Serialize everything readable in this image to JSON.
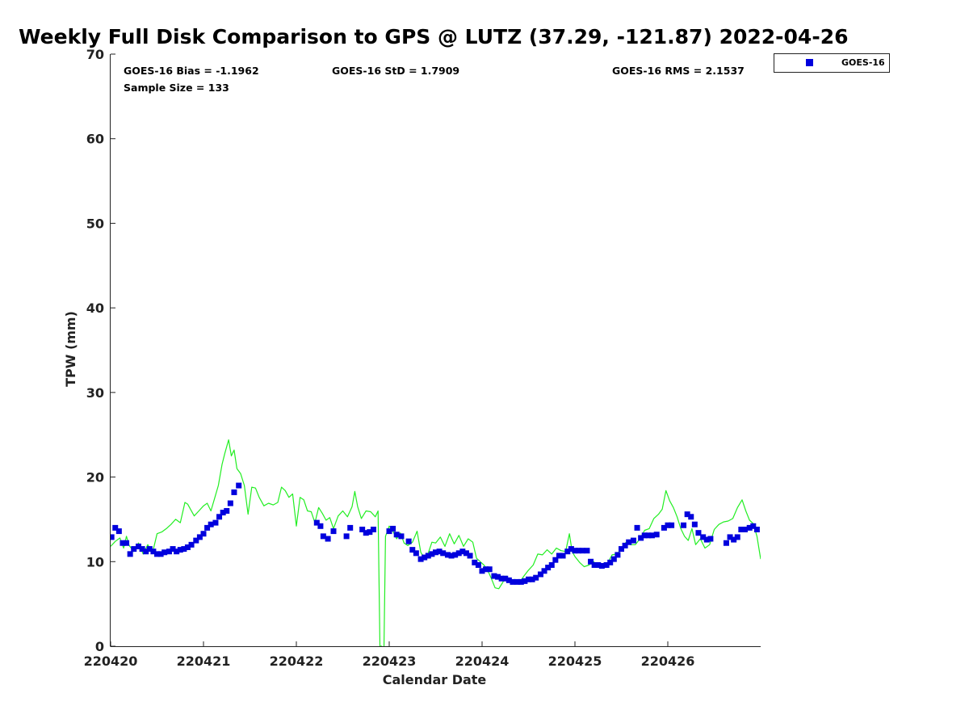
{
  "chart_data": {
    "type": "scatter",
    "title": "Weekly Full Disk Comparison to GPS @ LUTZ (37.29, -121.87) 2022-04-26",
    "xlabel": "Calendar Date",
    "ylabel": "TPW (mm)",
    "xlim": [
      0,
      7
    ],
    "ylim": [
      0,
      70
    ],
    "x_ticks": [
      0,
      1,
      2,
      3,
      4,
      5,
      6
    ],
    "x_tick_labels": [
      "220420",
      "220421",
      "220422",
      "220423",
      "220424",
      "220425",
      "220426"
    ],
    "y_ticks": [
      0,
      10,
      20,
      30,
      40,
      50,
      60,
      70
    ],
    "y_tick_labels": [
      "0",
      "10",
      "20",
      "30",
      "40",
      "50",
      "60",
      "70"
    ],
    "grid": false,
    "legend": {
      "placement": "outside-top-right",
      "entries": [
        "GOES-16"
      ]
    },
    "stats": {
      "bias": "GOES-16 Bias = -1.1962",
      "std": "GOES-16 StD = 1.7909",
      "rms": "GOES-16 RMS = 2.1537",
      "sample": "Sample Size = 133"
    },
    "series": [
      {
        "name": "GOES-16",
        "kind": "scatter",
        "marker": "square",
        "color": "#0000dd",
        "points": [
          [
            0.01,
            12.9
          ],
          [
            0.05,
            14.0
          ],
          [
            0.09,
            13.6
          ],
          [
            0.13,
            12.2
          ],
          [
            0.17,
            12.2
          ],
          [
            0.21,
            10.9
          ],
          [
            0.25,
            11.5
          ],
          [
            0.3,
            11.8
          ],
          [
            0.34,
            11.5
          ],
          [
            0.38,
            11.2
          ],
          [
            0.42,
            11.5
          ],
          [
            0.46,
            11.2
          ],
          [
            0.5,
            10.9
          ],
          [
            0.54,
            10.9
          ],
          [
            0.58,
            11.1
          ],
          [
            0.63,
            11.2
          ],
          [
            0.67,
            11.5
          ],
          [
            0.71,
            11.2
          ],
          [
            0.75,
            11.4
          ],
          [
            0.79,
            11.5
          ],
          [
            0.83,
            11.7
          ],
          [
            0.87,
            12.0
          ],
          [
            0.92,
            12.5
          ],
          [
            0.96,
            12.9
          ],
          [
            1.0,
            13.3
          ],
          [
            1.04,
            14.0
          ],
          [
            1.08,
            14.4
          ],
          [
            1.13,
            14.6
          ],
          [
            1.17,
            15.3
          ],
          [
            1.21,
            15.8
          ],
          [
            1.25,
            16.0
          ],
          [
            1.29,
            16.9
          ],
          [
            1.33,
            18.2
          ],
          [
            1.38,
            19.0
          ],
          [
            2.22,
            14.6
          ],
          [
            2.26,
            14.2
          ],
          [
            2.29,
            13.0
          ],
          [
            2.34,
            12.7
          ],
          [
            2.4,
            13.6
          ],
          [
            2.54,
            13.0
          ],
          [
            2.58,
            14.0
          ],
          [
            2.71,
            13.8
          ],
          [
            2.75,
            13.4
          ],
          [
            2.79,
            13.5
          ],
          [
            2.83,
            13.8
          ],
          [
            3.0,
            13.6
          ],
          [
            3.04,
            13.9
          ],
          [
            3.08,
            13.2
          ],
          [
            3.13,
            13.0
          ],
          [
            3.21,
            12.4
          ],
          [
            3.25,
            11.4
          ],
          [
            3.29,
            11.0
          ],
          [
            3.34,
            10.3
          ],
          [
            3.38,
            10.5
          ],
          [
            3.42,
            10.7
          ],
          [
            3.46,
            10.9
          ],
          [
            3.5,
            11.1
          ],
          [
            3.54,
            11.2
          ],
          [
            3.58,
            11.0
          ],
          [
            3.63,
            10.8
          ],
          [
            3.67,
            10.7
          ],
          [
            3.71,
            10.8
          ],
          [
            3.75,
            11.0
          ],
          [
            3.79,
            11.2
          ],
          [
            3.83,
            11.0
          ],
          [
            3.87,
            10.7
          ],
          [
            3.92,
            9.9
          ],
          [
            3.96,
            9.6
          ],
          [
            4.0,
            8.9
          ],
          [
            4.04,
            9.1
          ],
          [
            4.08,
            9.1
          ],
          [
            4.13,
            8.3
          ],
          [
            4.17,
            8.2
          ],
          [
            4.21,
            8.0
          ],
          [
            4.25,
            8.0
          ],
          [
            4.29,
            7.8
          ],
          [
            4.33,
            7.6
          ],
          [
            4.38,
            7.6
          ],
          [
            4.42,
            7.6
          ],
          [
            4.46,
            7.7
          ],
          [
            4.5,
            7.9
          ],
          [
            4.54,
            7.9
          ],
          [
            4.58,
            8.1
          ],
          [
            4.63,
            8.5
          ],
          [
            4.67,
            8.9
          ],
          [
            4.71,
            9.3
          ],
          [
            4.75,
            9.6
          ],
          [
            4.79,
            10.2
          ],
          [
            4.83,
            10.7
          ],
          [
            4.87,
            10.7
          ],
          [
            4.92,
            11.2
          ],
          [
            4.96,
            11.5
          ],
          [
            5.0,
            11.3
          ],
          [
            5.04,
            11.3
          ],
          [
            5.08,
            11.3
          ],
          [
            5.13,
            11.3
          ],
          [
            5.17,
            10.0
          ],
          [
            5.21,
            9.6
          ],
          [
            5.25,
            9.6
          ],
          [
            5.29,
            9.5
          ],
          [
            5.34,
            9.6
          ],
          [
            5.38,
            9.9
          ],
          [
            5.42,
            10.3
          ],
          [
            5.46,
            10.8
          ],
          [
            5.5,
            11.5
          ],
          [
            5.54,
            11.9
          ],
          [
            5.58,
            12.3
          ],
          [
            5.63,
            12.5
          ],
          [
            5.67,
            14.0
          ],
          [
            5.71,
            12.8
          ],
          [
            5.75,
            13.1
          ],
          [
            5.79,
            13.1
          ],
          [
            5.83,
            13.1
          ],
          [
            5.88,
            13.2
          ],
          [
            5.96,
            14.0
          ],
          [
            6.0,
            14.3
          ],
          [
            6.04,
            14.3
          ],
          [
            6.17,
            14.3
          ],
          [
            6.21,
            15.6
          ],
          [
            6.25,
            15.3
          ],
          [
            6.29,
            14.4
          ],
          [
            6.33,
            13.4
          ],
          [
            6.38,
            12.9
          ],
          [
            6.42,
            12.6
          ],
          [
            6.46,
            12.7
          ],
          [
            6.63,
            12.2
          ],
          [
            6.67,
            12.9
          ],
          [
            6.71,
            12.6
          ],
          [
            6.75,
            12.9
          ],
          [
            6.79,
            13.8
          ],
          [
            6.83,
            13.8
          ],
          [
            6.88,
            14.0
          ],
          [
            6.92,
            14.2
          ],
          [
            6.96,
            13.8
          ]
        ]
      },
      {
        "name": "GPS",
        "kind": "line",
        "color": "#22ee22",
        "points": [
          [
            0.0,
            11.8
          ],
          [
            0.05,
            12.4
          ],
          [
            0.1,
            12.8
          ],
          [
            0.14,
            11.6
          ],
          [
            0.17,
            13.0
          ],
          [
            0.2,
            11.9
          ],
          [
            0.25,
            11.2
          ],
          [
            0.3,
            12.2
          ],
          [
            0.35,
            10.9
          ],
          [
            0.4,
            12.0
          ],
          [
            0.45,
            11.0
          ],
          [
            0.5,
            13.3
          ],
          [
            0.55,
            13.5
          ],
          [
            0.6,
            13.9
          ],
          [
            0.65,
            14.4
          ],
          [
            0.7,
            15.0
          ],
          [
            0.75,
            14.6
          ],
          [
            0.8,
            17.0
          ],
          [
            0.83,
            16.8
          ],
          [
            0.86,
            16.2
          ],
          [
            0.9,
            15.4
          ],
          [
            0.95,
            16.0
          ],
          [
            1.0,
            16.6
          ],
          [
            1.04,
            16.9
          ],
          [
            1.08,
            16.0
          ],
          [
            1.12,
            17.5
          ],
          [
            1.16,
            19.0
          ],
          [
            1.2,
            21.5
          ],
          [
            1.23,
            22.8
          ],
          [
            1.27,
            24.4
          ],
          [
            1.3,
            22.5
          ],
          [
            1.33,
            23.2
          ],
          [
            1.36,
            21.0
          ],
          [
            1.4,
            20.4
          ],
          [
            1.44,
            19.0
          ],
          [
            1.48,
            15.6
          ],
          [
            1.52,
            18.8
          ],
          [
            1.56,
            18.7
          ],
          [
            1.6,
            17.6
          ],
          [
            1.65,
            16.6
          ],
          [
            1.7,
            16.9
          ],
          [
            1.75,
            16.7
          ],
          [
            1.8,
            17.0
          ],
          [
            1.84,
            18.8
          ],
          [
            1.88,
            18.4
          ],
          [
            1.92,
            17.6
          ],
          [
            1.96,
            18.0
          ],
          [
            2.0,
            14.2
          ],
          [
            2.04,
            17.6
          ],
          [
            2.08,
            17.3
          ],
          [
            2.12,
            16.0
          ],
          [
            2.16,
            15.9
          ],
          [
            2.2,
            14.6
          ],
          [
            2.24,
            16.4
          ],
          [
            2.28,
            15.7
          ],
          [
            2.32,
            14.9
          ],
          [
            2.36,
            15.2
          ],
          [
            2.4,
            13.9
          ],
          [
            2.45,
            15.4
          ],
          [
            2.5,
            16.0
          ],
          [
            2.55,
            15.3
          ],
          [
            2.6,
            16.5
          ],
          [
            2.63,
            18.3
          ],
          [
            2.66,
            16.5
          ],
          [
            2.7,
            15.1
          ],
          [
            2.75,
            16.0
          ],
          [
            2.8,
            15.9
          ],
          [
            2.85,
            15.3
          ],
          [
            2.88,
            16.0
          ],
          [
            2.9,
            0.0
          ],
          [
            2.92,
            0.0
          ],
          [
            2.94,
            -3.0
          ],
          [
            2.96,
            13.0
          ],
          [
            3.0,
            14.2
          ],
          [
            3.04,
            13.6
          ],
          [
            3.08,
            12.7
          ],
          [
            3.12,
            13.4
          ],
          [
            3.16,
            12.2
          ],
          [
            3.2,
            11.9
          ],
          [
            3.25,
            12.3
          ],
          [
            3.3,
            13.6
          ],
          [
            3.34,
            11.1
          ],
          [
            3.38,
            10.4
          ],
          [
            3.42,
            11.0
          ],
          [
            3.46,
            12.3
          ],
          [
            3.5,
            12.2
          ],
          [
            3.55,
            12.9
          ],
          [
            3.6,
            11.8
          ],
          [
            3.65,
            13.3
          ],
          [
            3.7,
            12.1
          ],
          [
            3.75,
            13.1
          ],
          [
            3.8,
            11.8
          ],
          [
            3.85,
            12.7
          ],
          [
            3.9,
            12.3
          ],
          [
            3.94,
            10.4
          ],
          [
            3.98,
            10.0
          ],
          [
            4.02,
            9.6
          ],
          [
            4.06,
            9.0
          ],
          [
            4.1,
            8.0
          ],
          [
            4.14,
            6.9
          ],
          [
            4.18,
            6.8
          ],
          [
            4.22,
            7.5
          ],
          [
            4.26,
            8.3
          ],
          [
            4.3,
            7.7
          ],
          [
            4.35,
            7.9
          ],
          [
            4.4,
            7.5
          ],
          [
            4.45,
            8.3
          ],
          [
            4.5,
            9.0
          ],
          [
            4.55,
            9.6
          ],
          [
            4.6,
            10.9
          ],
          [
            4.65,
            10.8
          ],
          [
            4.7,
            11.4
          ],
          [
            4.75,
            10.9
          ],
          [
            4.8,
            11.6
          ],
          [
            4.85,
            11.3
          ],
          [
            4.9,
            11.2
          ],
          [
            4.94,
            13.3
          ],
          [
            4.97,
            11.2
          ],
          [
            5.0,
            10.6
          ],
          [
            5.05,
            9.9
          ],
          [
            5.1,
            9.4
          ],
          [
            5.15,
            9.6
          ],
          [
            5.2,
            10.0
          ],
          [
            5.25,
            9.5
          ],
          [
            5.3,
            9.3
          ],
          [
            5.35,
            9.8
          ],
          [
            5.4,
            10.8
          ],
          [
            5.45,
            10.9
          ],
          [
            5.5,
            11.5
          ],
          [
            5.55,
            12.3
          ],
          [
            5.6,
            12.0
          ],
          [
            5.65,
            12.0
          ],
          [
            5.7,
            12.7
          ],
          [
            5.75,
            13.7
          ],
          [
            5.8,
            13.9
          ],
          [
            5.85,
            15.1
          ],
          [
            5.9,
            15.6
          ],
          [
            5.94,
            16.2
          ],
          [
            5.98,
            18.4
          ],
          [
            6.02,
            17.2
          ],
          [
            6.06,
            16.4
          ],
          [
            6.1,
            15.3
          ],
          [
            6.14,
            13.9
          ],
          [
            6.18,
            13.0
          ],
          [
            6.22,
            12.5
          ],
          [
            6.26,
            13.9
          ],
          [
            6.3,
            12.0
          ],
          [
            6.35,
            12.7
          ],
          [
            6.4,
            11.6
          ],
          [
            6.45,
            12.0
          ],
          [
            6.5,
            13.8
          ],
          [
            6.55,
            14.4
          ],
          [
            6.6,
            14.7
          ],
          [
            6.65,
            14.8
          ],
          [
            6.7,
            15.1
          ],
          [
            6.75,
            16.4
          ],
          [
            6.8,
            17.3
          ],
          [
            6.84,
            16.0
          ],
          [
            6.88,
            14.9
          ],
          [
            6.92,
            14.5
          ],
          [
            6.96,
            13.0
          ],
          [
            7.0,
            10.3
          ]
        ]
      }
    ]
  }
}
